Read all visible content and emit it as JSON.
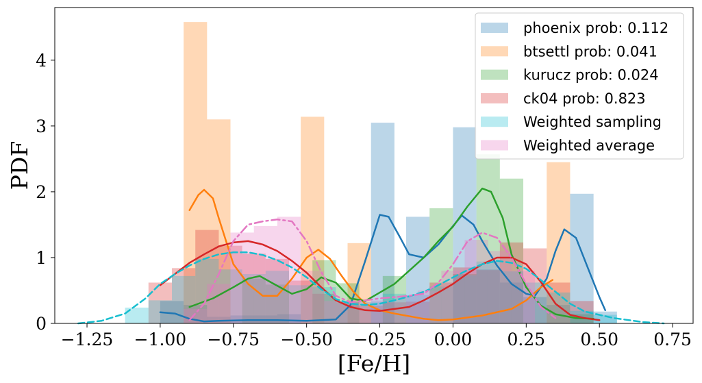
{
  "chart_data": {
    "type": "histogram+kde",
    "xlabel": "[Fe/H]",
    "ylabel": "PDF",
    "xlim": [
      -1.36,
      0.82
    ],
    "ylim": [
      0,
      4.8
    ],
    "xticks": [
      -1.25,
      -1.0,
      -0.75,
      -0.5,
      -0.25,
      0.0,
      0.25,
      0.5,
      0.75
    ],
    "xtick_labels": [
      "−1.25",
      "−1.00",
      "−0.75",
      "−0.50",
      "−0.25",
      "0.00",
      "0.25",
      "0.50",
      "0.75"
    ],
    "yticks": [
      0,
      1,
      2,
      3,
      4
    ],
    "ytick_labels": [
      "0",
      "1",
      "2",
      "3",
      "4"
    ],
    "legend_position": "upper right",
    "series": [
      {
        "name": "phoenix prob: 0.112",
        "color": "#1f77b4",
        "bins": [
          [
            -1.0,
            -0.92,
            0.34
          ],
          [
            -0.92,
            -0.84,
            0.28
          ],
          [
            -0.84,
            -0.76,
            0.1
          ],
          [
            -0.76,
            -0.68,
            0.12
          ],
          [
            -0.68,
            -0.6,
            0.12
          ],
          [
            -0.6,
            -0.52,
            0.14
          ],
          [
            -0.28,
            -0.2,
            3.05
          ],
          [
            -0.16,
            -0.08,
            1.62
          ],
          [
            0.0,
            0.08,
            2.98
          ],
          [
            0.08,
            0.16,
            0.82
          ],
          [
            0.16,
            0.24,
            0.62
          ],
          [
            0.24,
            0.32,
            0.4
          ],
          [
            0.32,
            0.4,
            0.28
          ],
          [
            0.4,
            0.48,
            1.97
          ],
          [
            0.48,
            0.56,
            0.18
          ]
        ],
        "kde": [
          [
            -1.0,
            0.17
          ],
          [
            -0.95,
            0.15
          ],
          [
            -0.9,
            0.07
          ],
          [
            -0.85,
            0.03
          ],
          [
            -0.8,
            0.04
          ],
          [
            -0.7,
            0.05
          ],
          [
            -0.6,
            0.05
          ],
          [
            -0.5,
            0.04
          ],
          [
            -0.4,
            0.06
          ],
          [
            -0.35,
            0.28
          ],
          [
            -0.3,
            0.95
          ],
          [
            -0.25,
            1.65
          ],
          [
            -0.22,
            1.62
          ],
          [
            -0.18,
            1.3
          ],
          [
            -0.15,
            1.05
          ],
          [
            -0.1,
            1.0
          ],
          [
            -0.05,
            1.2
          ],
          [
            0.0,
            1.48
          ],
          [
            0.03,
            1.64
          ],
          [
            0.07,
            1.5
          ],
          [
            0.1,
            1.25
          ],
          [
            0.15,
            0.88
          ],
          [
            0.2,
            0.6
          ],
          [
            0.25,
            0.45
          ],
          [
            0.28,
            0.42
          ],
          [
            0.32,
            0.68
          ],
          [
            0.35,
            1.1
          ],
          [
            0.38,
            1.43
          ],
          [
            0.42,
            1.3
          ],
          [
            0.46,
            0.85
          ],
          [
            0.5,
            0.4
          ],
          [
            0.52,
            0.2
          ]
        ]
      },
      {
        "name": "btsettl prob: 0.041",
        "color": "#ff7f0e",
        "bins": [
          [
            -0.92,
            -0.84,
            4.58
          ],
          [
            -0.84,
            -0.76,
            3.1
          ],
          [
            -0.52,
            -0.44,
            3.14
          ],
          [
            -0.36,
            -0.28,
            1.22
          ],
          [
            0.32,
            0.4,
            2.45
          ]
        ],
        "kde": [
          [
            -0.9,
            1.72
          ],
          [
            -0.87,
            1.95
          ],
          [
            -0.85,
            2.03
          ],
          [
            -0.82,
            1.9
          ],
          [
            -0.8,
            1.6
          ],
          [
            -0.75,
            0.9
          ],
          [
            -0.7,
            0.6
          ],
          [
            -0.65,
            0.42
          ],
          [
            -0.6,
            0.42
          ],
          [
            -0.55,
            0.68
          ],
          [
            -0.5,
            1.0
          ],
          [
            -0.46,
            1.12
          ],
          [
            -0.42,
            0.98
          ],
          [
            -0.38,
            0.72
          ],
          [
            -0.34,
            0.48
          ],
          [
            -0.3,
            0.3
          ],
          [
            -0.25,
            0.2
          ],
          [
            -0.2,
            0.15
          ],
          [
            -0.1,
            0.07
          ],
          [
            -0.05,
            0.05
          ],
          [
            0.0,
            0.06
          ],
          [
            0.1,
            0.12
          ],
          [
            0.2,
            0.22
          ],
          [
            0.25,
            0.35
          ],
          [
            0.3,
            0.55
          ],
          [
            0.34,
            0.66
          ]
        ]
      },
      {
        "name": "kurucz prob: 0.024",
        "color": "#2ca02c",
        "bins": [
          [
            -0.72,
            -0.64,
            0.68
          ],
          [
            -0.64,
            -0.56,
            0.59
          ],
          [
            -0.48,
            -0.4,
            0.96
          ],
          [
            -0.4,
            -0.32,
            0.61
          ],
          [
            -0.24,
            -0.16,
            0.72
          ],
          [
            -0.08,
            0.0,
            1.75
          ],
          [
            0.0,
            0.08,
            0.75
          ],
          [
            0.08,
            0.16,
            2.57
          ],
          [
            0.16,
            0.24,
            2.2
          ],
          [
            0.4,
            0.48,
            0.14
          ]
        ],
        "kde": [
          [
            -0.9,
            0.25
          ],
          [
            -0.82,
            0.38
          ],
          [
            -0.75,
            0.55
          ],
          [
            -0.7,
            0.68
          ],
          [
            -0.66,
            0.72
          ],
          [
            -0.62,
            0.62
          ],
          [
            -0.55,
            0.45
          ],
          [
            -0.5,
            0.52
          ],
          [
            -0.45,
            0.7
          ],
          [
            -0.4,
            0.62
          ],
          [
            -0.35,
            0.38
          ],
          [
            -0.3,
            0.34
          ],
          [
            -0.25,
            0.47
          ],
          [
            -0.2,
            0.6
          ],
          [
            -0.1,
            1.0
          ],
          [
            -0.05,
            1.25
          ],
          [
            0.0,
            1.47
          ],
          [
            0.05,
            1.78
          ],
          [
            0.1,
            2.05
          ],
          [
            0.13,
            2.0
          ],
          [
            0.17,
            1.6
          ],
          [
            0.2,
            1.05
          ],
          [
            0.25,
            0.55
          ],
          [
            0.3,
            0.27
          ],
          [
            0.35,
            0.14
          ],
          [
            0.42,
            0.08
          ],
          [
            0.48,
            0.07
          ]
        ]
      },
      {
        "name": "ck04 prob: 0.823",
        "color": "#d62728",
        "bins": [
          [
            -1.04,
            -0.96,
            0.62
          ],
          [
            -0.96,
            -0.88,
            0.84
          ],
          [
            -0.88,
            -0.8,
            1.42
          ],
          [
            -0.8,
            -0.72,
            1.18
          ],
          [
            -0.72,
            -0.64,
            1.06
          ],
          [
            -0.64,
            -0.56,
            0.98
          ],
          [
            -0.56,
            -0.48,
            0.65
          ],
          [
            -0.48,
            -0.4,
            0.45
          ],
          [
            -0.4,
            -0.32,
            0.32
          ],
          [
            -0.32,
            -0.24,
            0.27
          ],
          [
            -0.24,
            -0.16,
            0.32
          ],
          [
            -0.16,
            -0.08,
            0.33
          ],
          [
            -0.08,
            0.0,
            0.62
          ],
          [
            0.0,
            0.08,
            0.85
          ],
          [
            0.08,
            0.16,
            0.81
          ],
          [
            0.16,
            0.24,
            1.23
          ],
          [
            0.24,
            0.32,
            1.14
          ],
          [
            0.32,
            0.4,
            0.62
          ],
          [
            0.4,
            0.48,
            0.34
          ]
        ],
        "kde": [
          [
            -1.0,
            0.58
          ],
          [
            -0.95,
            0.75
          ],
          [
            -0.9,
            0.92
          ],
          [
            -0.85,
            1.05
          ],
          [
            -0.8,
            1.17
          ],
          [
            -0.75,
            1.23
          ],
          [
            -0.7,
            1.25
          ],
          [
            -0.65,
            1.2
          ],
          [
            -0.6,
            1.1
          ],
          [
            -0.55,
            0.95
          ],
          [
            -0.5,
            0.77
          ],
          [
            -0.45,
            0.55
          ],
          [
            -0.4,
            0.35
          ],
          [
            -0.35,
            0.25
          ],
          [
            -0.3,
            0.2
          ],
          [
            -0.25,
            0.19
          ],
          [
            -0.2,
            0.22
          ],
          [
            -0.15,
            0.25
          ],
          [
            -0.1,
            0.35
          ],
          [
            -0.05,
            0.47
          ],
          [
            0.0,
            0.6
          ],
          [
            0.05,
            0.76
          ],
          [
            0.1,
            0.9
          ],
          [
            0.15,
            1.0
          ],
          [
            0.2,
            1.0
          ],
          [
            0.25,
            0.9
          ],
          [
            0.3,
            0.63
          ],
          [
            0.35,
            0.3
          ],
          [
            0.4,
            0.13
          ],
          [
            0.45,
            0.08
          ],
          [
            0.5,
            0.05
          ]
        ]
      },
      {
        "name": "Weighted sampling",
        "color": "#17becf",
        "bins": [
          [
            -1.12,
            -1.04,
            0.24
          ],
          [
            -1.04,
            -0.96,
            0.35
          ],
          [
            -0.96,
            -0.88,
            0.72
          ],
          [
            -0.88,
            -0.8,
            0.98
          ],
          [
            -0.8,
            -0.72,
            0.82
          ],
          [
            -0.72,
            -0.64,
            0.75
          ],
          [
            -0.64,
            -0.56,
            0.8
          ],
          [
            -0.56,
            -0.48,
            0.58
          ],
          [
            -0.48,
            -0.4,
            0.55
          ],
          [
            -0.4,
            -0.32,
            0.33
          ],
          [
            -0.32,
            -0.24,
            0.33
          ],
          [
            -0.24,
            -0.16,
            0.45
          ],
          [
            -0.16,
            -0.08,
            0.43
          ],
          [
            -0.08,
            0.0,
            0.56
          ],
          [
            0.0,
            0.08,
            0.73
          ],
          [
            0.08,
            0.16,
            0.94
          ],
          [
            0.16,
            0.24,
            0.79
          ],
          [
            0.24,
            0.32,
            0.62
          ],
          [
            0.32,
            0.4,
            0.47
          ],
          [
            0.4,
            0.48,
            0.19
          ],
          [
            0.48,
            0.56,
            0.13
          ]
        ],
        "kde": [
          [
            -1.28,
            0.0
          ],
          [
            -1.2,
            0.04
          ],
          [
            -1.12,
            0.15
          ],
          [
            -1.05,
            0.38
          ],
          [
            -1.0,
            0.6
          ],
          [
            -0.95,
            0.75
          ],
          [
            -0.9,
            0.88
          ],
          [
            -0.85,
            0.98
          ],
          [
            -0.8,
            1.05
          ],
          [
            -0.75,
            1.08
          ],
          [
            -0.7,
            1.08
          ],
          [
            -0.65,
            1.04
          ],
          [
            -0.6,
            0.96
          ],
          [
            -0.55,
            0.85
          ],
          [
            -0.5,
            0.7
          ],
          [
            -0.45,
            0.52
          ],
          [
            -0.4,
            0.37
          ],
          [
            -0.35,
            0.3
          ],
          [
            -0.3,
            0.28
          ],
          [
            -0.25,
            0.3
          ],
          [
            -0.2,
            0.35
          ],
          [
            -0.15,
            0.41
          ],
          [
            -0.1,
            0.48
          ],
          [
            -0.05,
            0.58
          ],
          [
            0.0,
            0.7
          ],
          [
            0.05,
            0.81
          ],
          [
            0.1,
            0.9
          ],
          [
            0.15,
            0.95
          ],
          [
            0.2,
            0.92
          ],
          [
            0.25,
            0.83
          ],
          [
            0.3,
            0.66
          ],
          [
            0.35,
            0.48
          ],
          [
            0.4,
            0.3
          ],
          [
            0.45,
            0.18
          ],
          [
            0.5,
            0.13
          ],
          [
            0.55,
            0.08
          ],
          [
            0.6,
            0.05
          ],
          [
            0.65,
            0.02
          ],
          [
            0.72,
            0.0
          ]
        ]
      },
      {
        "name": "Weighted average",
        "color": "#e377c2",
        "bins": [
          [
            -0.92,
            -0.84,
            0.22
          ],
          [
            -0.84,
            -0.76,
            0.6
          ],
          [
            -0.76,
            -0.68,
            1.38
          ],
          [
            -0.68,
            -0.6,
            1.48
          ],
          [
            -0.6,
            -0.52,
            1.62
          ],
          [
            -0.52,
            -0.44,
            0.8
          ],
          [
            -0.44,
            -0.36,
            0.34
          ],
          [
            -0.36,
            -0.28,
            0.33
          ],
          [
            -0.28,
            -0.2,
            0.35
          ],
          [
            -0.2,
            -0.12,
            0.42
          ],
          [
            -0.12,
            -0.04,
            0.5
          ],
          [
            -0.04,
            0.04,
            0.8
          ],
          [
            0.04,
            0.12,
            1.27
          ],
          [
            0.12,
            0.2,
            1.1
          ],
          [
            0.2,
            0.28,
            0.8
          ]
        ],
        "kde": [
          [
            -0.9,
            0.05
          ],
          [
            -0.85,
            0.3
          ],
          [
            -0.8,
            0.75
          ],
          [
            -0.75,
            1.25
          ],
          [
            -0.7,
            1.5
          ],
          [
            -0.65,
            1.55
          ],
          [
            -0.6,
            1.58
          ],
          [
            -0.55,
            1.55
          ],
          [
            -0.5,
            1.25
          ],
          [
            -0.45,
            0.78
          ],
          [
            -0.4,
            0.42
          ],
          [
            -0.35,
            0.32
          ],
          [
            -0.3,
            0.35
          ],
          [
            -0.25,
            0.38
          ],
          [
            -0.2,
            0.4
          ],
          [
            -0.15,
            0.42
          ],
          [
            -0.1,
            0.45
          ],
          [
            -0.05,
            0.62
          ],
          [
            0.0,
            0.9
          ],
          [
            0.05,
            1.25
          ],
          [
            0.1,
            1.38
          ],
          [
            0.15,
            1.3
          ],
          [
            0.2,
            1.0
          ],
          [
            0.25,
            0.6
          ],
          [
            0.3,
            0.25
          ],
          [
            0.35,
            0.08
          ]
        ]
      }
    ]
  }
}
